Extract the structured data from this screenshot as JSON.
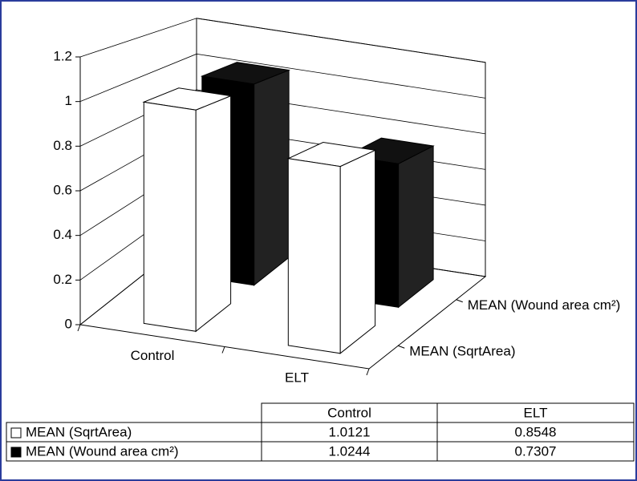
{
  "chart_data": {
    "type": "bar3d",
    "categories": [
      "Control",
      "ELT"
    ],
    "series": [
      {
        "name": "MEAN (SqrtArea)",
        "color": "#ffffff",
        "values": [
          1.0121,
          0.8548
        ]
      },
      {
        "name": "MEAN (Wound area cm²)",
        "color": "#000000",
        "values": [
          1.0244,
          0.7307
        ]
      }
    ],
    "ylim": [
      0,
      1.2
    ],
    "yticks": [
      0,
      0.2,
      0.4,
      0.6,
      0.8,
      1,
      1.2
    ],
    "grid": true
  }
}
